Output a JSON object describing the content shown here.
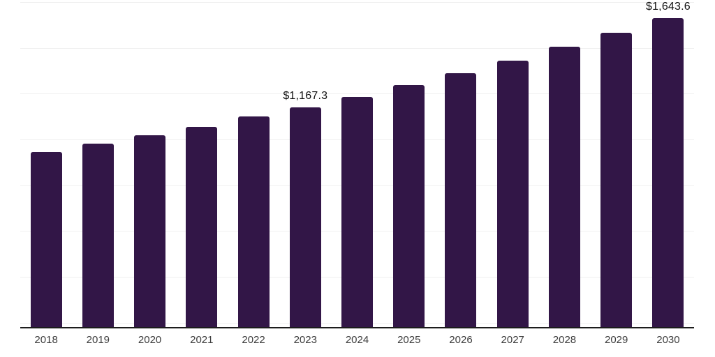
{
  "chart_data": {
    "type": "bar",
    "categories": [
      "2018",
      "2019",
      "2020",
      "2021",
      "2022",
      "2023",
      "2024",
      "2025",
      "2026",
      "2027",
      "2028",
      "2029",
      "2030"
    ],
    "values": [
      930.0,
      976.0,
      1020.5,
      1066.0,
      1121.0,
      1167.3,
      1225.9,
      1287.0,
      1351.4,
      1419.0,
      1489.9,
      1564.4,
      1643.6
    ],
    "value_labels": [
      "",
      "",
      "",
      "",
      "",
      "$1,167.3",
      "",
      "",
      "",
      "",
      "",
      "",
      "$1,643.6"
    ],
    "title": "",
    "xlabel": "",
    "ylabel": "",
    "ylim": [
      0,
      1750
    ],
    "grid": "horizontal-faint",
    "gridline_count": 8,
    "legend": "none",
    "currency_prefix": "$"
  },
  "colors": {
    "bar": "#321647",
    "gridline": "#f0f0f0",
    "axis_line": "#1c1c1c",
    "tick_label": "#3d3d3d",
    "value_label": "#111111",
    "background": "#ffffff"
  }
}
